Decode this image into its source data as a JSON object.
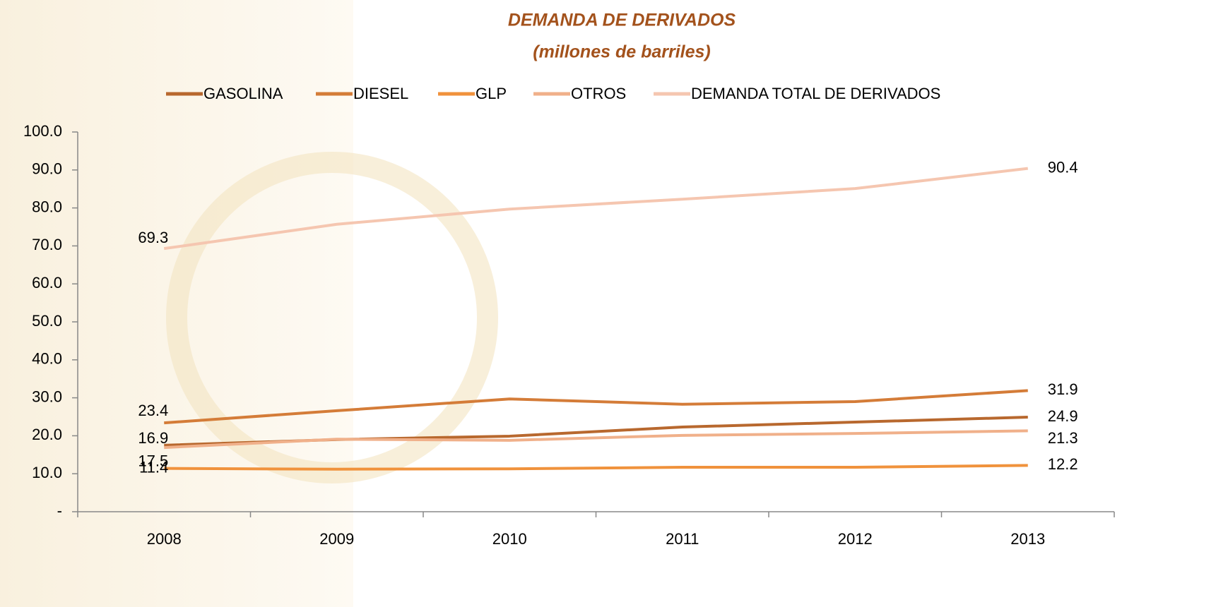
{
  "chart_data": {
    "type": "line",
    "title": "DEMANDA DE DERIVADOS",
    "subtitle": "(millones de barriles)",
    "categories": [
      "2008",
      "2009",
      "2010",
      "2011",
      "2012",
      "2013"
    ],
    "series": [
      {
        "name": "GASOLINA",
        "color": "#b8682e",
        "values": [
          17.5,
          19.0,
          19.9,
          22.3,
          23.6,
          24.9
        ],
        "value_labels": [
          "17.5",
          null,
          null,
          null,
          null,
          "24.9"
        ]
      },
      {
        "name": "DIESEL",
        "color": "#d47c38",
        "values": [
          23.4,
          26.6,
          29.7,
          28.3,
          29.0,
          31.9
        ],
        "value_labels": [
          "23.4",
          null,
          null,
          null,
          null,
          "31.9"
        ]
      },
      {
        "name": "GLP",
        "color": "#f0923c",
        "values": [
          11.4,
          11.2,
          11.3,
          11.7,
          11.7,
          12.2
        ],
        "value_labels": [
          "11.4",
          null,
          null,
          null,
          null,
          "12.2"
        ]
      },
      {
        "name": "OTROS",
        "color": "#f0b08a",
        "values": [
          16.9,
          19.1,
          18.8,
          20.1,
          20.6,
          21.3
        ],
        "value_labels": [
          "16.9",
          null,
          null,
          null,
          null,
          "21.3"
        ]
      },
      {
        "name": "DEMANDA TOTAL DE DERIVADOS",
        "color": "#f5c6b0",
        "values": [
          69.3,
          75.7,
          79.7,
          82.3,
          85.1,
          90.4
        ],
        "value_labels": [
          "69.3",
          null,
          null,
          null,
          null,
          "90.4"
        ]
      }
    ],
    "ylim": [
      0,
      100
    ],
    "yticks": [
      {
        "value": 0,
        "label": "-"
      },
      {
        "value": 10,
        "label": "10.0"
      },
      {
        "value": 20,
        "label": "20.0"
      },
      {
        "value": 30,
        "label": "30.0"
      },
      {
        "value": 40,
        "label": "40.0"
      },
      {
        "value": 50,
        "label": "50.0"
      },
      {
        "value": 60,
        "label": "60.0"
      },
      {
        "value": 70,
        "label": "70.0"
      },
      {
        "value": 80,
        "label": "80.0"
      },
      {
        "value": 90,
        "label": "90.0"
      },
      {
        "value": 100,
        "label": "100.0"
      }
    ],
    "grid": false,
    "legend": "top"
  }
}
